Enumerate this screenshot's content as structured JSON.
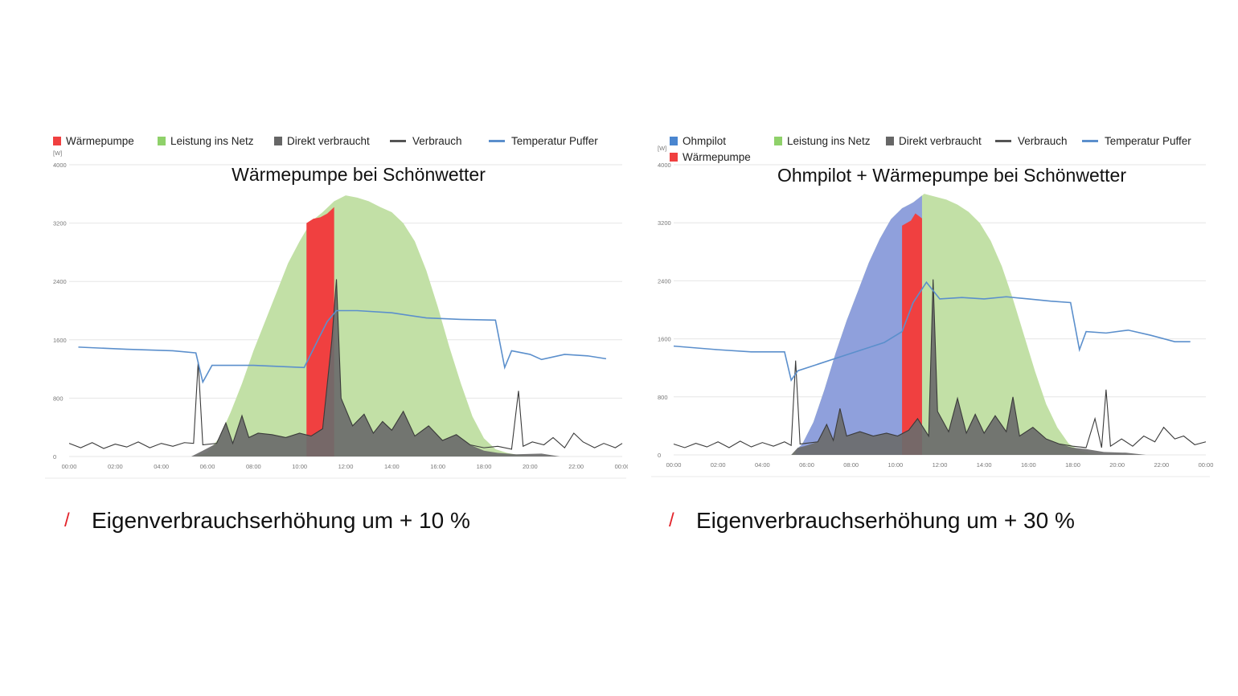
{
  "colors": {
    "heatpump": "#f04040",
    "grid_feed": "#c2e0a6",
    "grid_feed_legend": "#8fd16a",
    "direct": "#6b6b6b",
    "consumption": "#3a3a3a",
    "temperature": "#5b8fcc",
    "ohmpilot": "#8fa0dc",
    "ohmpilot_legend": "#4a86d0",
    "caption_slash": "#e3242b"
  },
  "chart_data": [
    {
      "type": "area",
      "title": "Wärmepumpe bei Schönwetter",
      "unit": "[W]",
      "yticks": [
        "0",
        "800",
        "1600",
        "2400",
        "3200",
        "4000"
      ],
      "ylim": [
        0,
        4000
      ],
      "xticks": [
        "00:00",
        "02:00",
        "04:00",
        "06:00",
        "08:00",
        "10:00",
        "12:00",
        "14:00",
        "16:00",
        "18:00",
        "20:00",
        "22:00",
        "00:00"
      ],
      "xlim_hours": [
        0,
        24
      ],
      "legend": [
        {
          "label": "Wärmepumpe",
          "kind": "square",
          "color": "#f04040"
        },
        {
          "label": "Leistung ins Netz",
          "kind": "square",
          "color": "#8fd16a"
        },
        {
          "label": "Direkt verbraucht",
          "kind": "square",
          "color": "#666666"
        },
        {
          "label": "Verbrauch",
          "kind": "line",
          "color": "#555555"
        },
        {
          "label": "Temperatur Puffer",
          "kind": "line",
          "color": "#5b8fcc"
        }
      ],
      "production": [
        [
          5.5,
          0
        ],
        [
          6.0,
          60
        ],
        [
          6.5,
          250
        ],
        [
          7.0,
          600
        ],
        [
          7.5,
          1000
        ],
        [
          8.0,
          1450
        ],
        [
          8.5,
          1850
        ],
        [
          9.0,
          2250
        ],
        [
          9.5,
          2650
        ],
        [
          10.0,
          2950
        ],
        [
          10.5,
          3220
        ],
        [
          11.0,
          3350
        ],
        [
          11.5,
          3500
        ],
        [
          12.0,
          3580
        ],
        [
          12.5,
          3550
        ],
        [
          13.0,
          3500
        ],
        [
          13.5,
          3420
        ],
        [
          14.0,
          3350
        ],
        [
          14.5,
          3200
        ],
        [
          15.0,
          2950
        ],
        [
          15.5,
          2550
        ],
        [
          16.0,
          2050
        ],
        [
          16.5,
          1500
        ],
        [
          17.0,
          1000
        ],
        [
          17.5,
          550
        ],
        [
          18.0,
          250
        ],
        [
          18.5,
          100
        ],
        [
          19.0,
          50
        ],
        [
          19.5,
          20
        ],
        [
          20.0,
          0
        ]
      ],
      "heatpump": {
        "start": 10.3,
        "end": 11.5,
        "top": [
          [
            10.3,
            3200
          ],
          [
            10.6,
            3260
          ],
          [
            10.9,
            3280
          ],
          [
            11.2,
            3330
          ],
          [
            11.5,
            3420
          ]
        ]
      },
      "direct": [
        [
          5.3,
          0
        ],
        [
          5.8,
          80
        ],
        [
          6.4,
          180
        ],
        [
          6.8,
          460
        ],
        [
          7.1,
          180
        ],
        [
          7.5,
          560
        ],
        [
          7.8,
          260
        ],
        [
          8.2,
          320
        ],
        [
          8.8,
          300
        ],
        [
          9.4,
          260
        ],
        [
          10.0,
          320
        ],
        [
          10.5,
          280
        ],
        [
          11.0,
          380
        ],
        [
          11.4,
          1600
        ],
        [
          11.6,
          2430
        ],
        [
          11.8,
          800
        ],
        [
          12.3,
          420
        ],
        [
          12.8,
          580
        ],
        [
          13.2,
          320
        ],
        [
          13.6,
          480
        ],
        [
          14.0,
          360
        ],
        [
          14.5,
          620
        ],
        [
          15.0,
          280
        ],
        [
          15.6,
          420
        ],
        [
          16.2,
          220
        ],
        [
          16.8,
          300
        ],
        [
          17.4,
          160
        ],
        [
          18.0,
          80
        ],
        [
          18.6,
          50
        ],
        [
          19.4,
          30
        ],
        [
          20.5,
          40
        ],
        [
          21.3,
          0
        ]
      ],
      "consumption": [
        [
          0.0,
          180
        ],
        [
          0.5,
          120
        ],
        [
          1.0,
          190
        ],
        [
          1.5,
          110
        ],
        [
          2.0,
          170
        ],
        [
          2.5,
          130
        ],
        [
          3.0,
          200
        ],
        [
          3.5,
          120
        ],
        [
          4.0,
          180
        ],
        [
          4.5,
          140
        ],
        [
          5.0,
          190
        ],
        [
          5.4,
          180
        ],
        [
          5.6,
          1300
        ],
        [
          5.8,
          160
        ],
        [
          6.4,
          180
        ],
        [
          6.8,
          460
        ],
        [
          7.1,
          180
        ],
        [
          7.5,
          560
        ],
        [
          7.8,
          260
        ],
        [
          8.2,
          320
        ],
        [
          8.8,
          300
        ],
        [
          9.4,
          260
        ],
        [
          10.0,
          320
        ],
        [
          10.5,
          280
        ],
        [
          11.0,
          380
        ],
        [
          11.4,
          1600
        ],
        [
          11.6,
          2430
        ],
        [
          11.8,
          800
        ],
        [
          12.3,
          420
        ],
        [
          12.8,
          580
        ],
        [
          13.2,
          320
        ],
        [
          13.6,
          480
        ],
        [
          14.0,
          360
        ],
        [
          14.5,
          620
        ],
        [
          15.0,
          280
        ],
        [
          15.6,
          420
        ],
        [
          16.2,
          220
        ],
        [
          16.8,
          300
        ],
        [
          17.4,
          160
        ],
        [
          18.0,
          120
        ],
        [
          18.6,
          140
        ],
        [
          19.2,
          100
        ],
        [
          19.5,
          900
        ],
        [
          19.7,
          140
        ],
        [
          20.1,
          200
        ],
        [
          20.6,
          160
        ],
        [
          21.0,
          260
        ],
        [
          21.5,
          120
        ],
        [
          21.9,
          320
        ],
        [
          22.3,
          200
        ],
        [
          22.8,
          120
        ],
        [
          23.2,
          180
        ],
        [
          23.7,
          120
        ],
        [
          24.0,
          180
        ]
      ],
      "temperature": [
        [
          0.4,
          1500
        ],
        [
          2.5,
          1470
        ],
        [
          4.5,
          1450
        ],
        [
          5.5,
          1420
        ],
        [
          5.8,
          1020
        ],
        [
          6.2,
          1250
        ],
        [
          8.0,
          1250
        ],
        [
          10.2,
          1220
        ],
        [
          10.8,
          1600
        ],
        [
          11.2,
          1850
        ],
        [
          11.6,
          2000
        ],
        [
          12.5,
          2000
        ],
        [
          14.0,
          1970
        ],
        [
          15.5,
          1900
        ],
        [
          17.0,
          1880
        ],
        [
          18.5,
          1870
        ],
        [
          18.9,
          1220
        ],
        [
          19.2,
          1450
        ],
        [
          20.0,
          1400
        ],
        [
          20.5,
          1330
        ],
        [
          21.5,
          1400
        ],
        [
          22.5,
          1380
        ],
        [
          23.3,
          1340
        ]
      ]
    },
    {
      "type": "area",
      "title": "Ohmpilot + Wärmepumpe bei Schönwetter",
      "unit": "[W]",
      "yticks": [
        "0",
        "800",
        "1600",
        "2400",
        "3200",
        "4000"
      ],
      "ylim": [
        0,
        4000
      ],
      "xticks": [
        "00:00",
        "02:00",
        "04:00",
        "06:00",
        "08:00",
        "10:00",
        "12:00",
        "14:00",
        "16:00",
        "18:00",
        "20:00",
        "22:00",
        "00:00"
      ],
      "xlim_hours": [
        0,
        24
      ],
      "legend": [
        {
          "label": "Ohmpilot",
          "kind": "square",
          "color": "#4a86d0"
        },
        {
          "label": "Wärmepumpe",
          "kind": "square",
          "color": "#f04040"
        },
        {
          "label": "Leistung ins Netz",
          "kind": "square",
          "color": "#8fd16a"
        },
        {
          "label": "Direkt verbraucht",
          "kind": "square",
          "color": "#666666"
        },
        {
          "label": "Verbrauch",
          "kind": "line",
          "color": "#555555"
        },
        {
          "label": "Temperatur Puffer",
          "kind": "line",
          "color": "#5b8fcc"
        }
      ],
      "production": [
        [
          5.3,
          0
        ],
        [
          5.8,
          150
        ],
        [
          6.3,
          450
        ],
        [
          6.8,
          900
        ],
        [
          7.3,
          1400
        ],
        [
          7.8,
          1850
        ],
        [
          8.3,
          2250
        ],
        [
          8.8,
          2650
        ],
        [
          9.3,
          2980
        ],
        [
          9.8,
          3250
        ],
        [
          10.3,
          3400
        ],
        [
          10.8,
          3480
        ],
        [
          11.3,
          3600
        ],
        [
          11.8,
          3560
        ],
        [
          12.3,
          3520
        ],
        [
          12.8,
          3450
        ],
        [
          13.3,
          3350
        ],
        [
          13.8,
          3200
        ],
        [
          14.3,
          2950
        ],
        [
          14.8,
          2600
        ],
        [
          15.3,
          2150
        ],
        [
          15.8,
          1650
        ],
        [
          16.3,
          1150
        ],
        [
          16.8,
          700
        ],
        [
          17.3,
          380
        ],
        [
          17.8,
          160
        ],
        [
          18.3,
          60
        ],
        [
          18.8,
          20
        ],
        [
          19.3,
          0
        ]
      ],
      "ohmpilot": {
        "start": 5.5,
        "end": 11.2
      },
      "heatpump": {
        "start": 10.3,
        "end": 11.2,
        "top": [
          [
            10.3,
            3160
          ],
          [
            10.7,
            3230
          ],
          [
            10.9,
            3330
          ],
          [
            11.2,
            3260
          ]
        ]
      },
      "direct": [
        [
          5.3,
          0
        ],
        [
          5.6,
          100
        ],
        [
          5.9,
          120
        ],
        [
          6.5,
          180
        ],
        [
          6.9,
          420
        ],
        [
          7.2,
          200
        ],
        [
          7.5,
          640
        ],
        [
          7.8,
          260
        ],
        [
          8.4,
          320
        ],
        [
          9.0,
          260
        ],
        [
          9.6,
          300
        ],
        [
          10.1,
          260
        ],
        [
          10.6,
          340
        ],
        [
          11.0,
          500
        ],
        [
          11.5,
          260
        ],
        [
          11.7,
          2420
        ],
        [
          11.9,
          600
        ],
        [
          12.4,
          320
        ],
        [
          12.8,
          780
        ],
        [
          13.2,
          300
        ],
        [
          13.6,
          560
        ],
        [
          14.0,
          300
        ],
        [
          14.5,
          540
        ],
        [
          15.0,
          320
        ],
        [
          15.3,
          800
        ],
        [
          15.6,
          260
        ],
        [
          16.2,
          380
        ],
        [
          16.8,
          220
        ],
        [
          17.4,
          150
        ],
        [
          18.0,
          100
        ],
        [
          18.6,
          80
        ],
        [
          19.4,
          40
        ],
        [
          20.4,
          30
        ],
        [
          21.3,
          0
        ]
      ],
      "consumption": [
        [
          0.0,
          150
        ],
        [
          0.5,
          100
        ],
        [
          1.0,
          160
        ],
        [
          1.5,
          110
        ],
        [
          2.0,
          180
        ],
        [
          2.5,
          100
        ],
        [
          3.0,
          190
        ],
        [
          3.5,
          110
        ],
        [
          4.0,
          170
        ],
        [
          4.5,
          120
        ],
        [
          5.0,
          180
        ],
        [
          5.3,
          130
        ],
        [
          5.5,
          1300
        ],
        [
          5.7,
          150
        ],
        [
          6.5,
          180
        ],
        [
          6.9,
          420
        ],
        [
          7.2,
          200
        ],
        [
          7.5,
          640
        ],
        [
          7.8,
          260
        ],
        [
          8.4,
          320
        ],
        [
          9.0,
          260
        ],
        [
          9.6,
          300
        ],
        [
          10.1,
          260
        ],
        [
          10.6,
          340
        ],
        [
          11.0,
          500
        ],
        [
          11.5,
          260
        ],
        [
          11.7,
          2420
        ],
        [
          11.9,
          600
        ],
        [
          12.4,
          320
        ],
        [
          12.8,
          780
        ],
        [
          13.2,
          300
        ],
        [
          13.6,
          560
        ],
        [
          14.0,
          300
        ],
        [
          14.5,
          540
        ],
        [
          15.0,
          320
        ],
        [
          15.3,
          800
        ],
        [
          15.6,
          260
        ],
        [
          16.2,
          380
        ],
        [
          16.8,
          220
        ],
        [
          17.4,
          150
        ],
        [
          18.0,
          120
        ],
        [
          18.6,
          100
        ],
        [
          19.0,
          500
        ],
        [
          19.3,
          100
        ],
        [
          19.5,
          900
        ],
        [
          19.7,
          120
        ],
        [
          20.2,
          220
        ],
        [
          20.7,
          120
        ],
        [
          21.2,
          260
        ],
        [
          21.7,
          180
        ],
        [
          22.1,
          380
        ],
        [
          22.6,
          220
        ],
        [
          23.0,
          260
        ],
        [
          23.5,
          140
        ],
        [
          24.0,
          180
        ]
      ],
      "temperature": [
        [
          0.0,
          1500
        ],
        [
          2.0,
          1450
        ],
        [
          3.5,
          1420
        ],
        [
          5.0,
          1420
        ],
        [
          5.3,
          1030
        ],
        [
          5.6,
          1160
        ],
        [
          6.5,
          1250
        ],
        [
          7.5,
          1350
        ],
        [
          8.5,
          1450
        ],
        [
          9.5,
          1550
        ],
        [
          10.3,
          1700
        ],
        [
          10.8,
          2100
        ],
        [
          11.4,
          2380
        ],
        [
          12.0,
          2150
        ],
        [
          13.0,
          2170
        ],
        [
          14.0,
          2150
        ],
        [
          15.0,
          2180
        ],
        [
          16.0,
          2150
        ],
        [
          17.0,
          2120
        ],
        [
          17.9,
          2100
        ],
        [
          18.3,
          1450
        ],
        [
          18.6,
          1700
        ],
        [
          19.5,
          1680
        ],
        [
          20.5,
          1720
        ],
        [
          21.5,
          1650
        ],
        [
          22.6,
          1560
        ],
        [
          23.3,
          1560
        ]
      ]
    }
  ],
  "captions": [
    {
      "slash": "/",
      "text": "Eigenverbrauchserhöhung um + 10 %"
    },
    {
      "slash": "/",
      "text": "Eigenverbrauchserhöhung um + 30 %"
    }
  ]
}
